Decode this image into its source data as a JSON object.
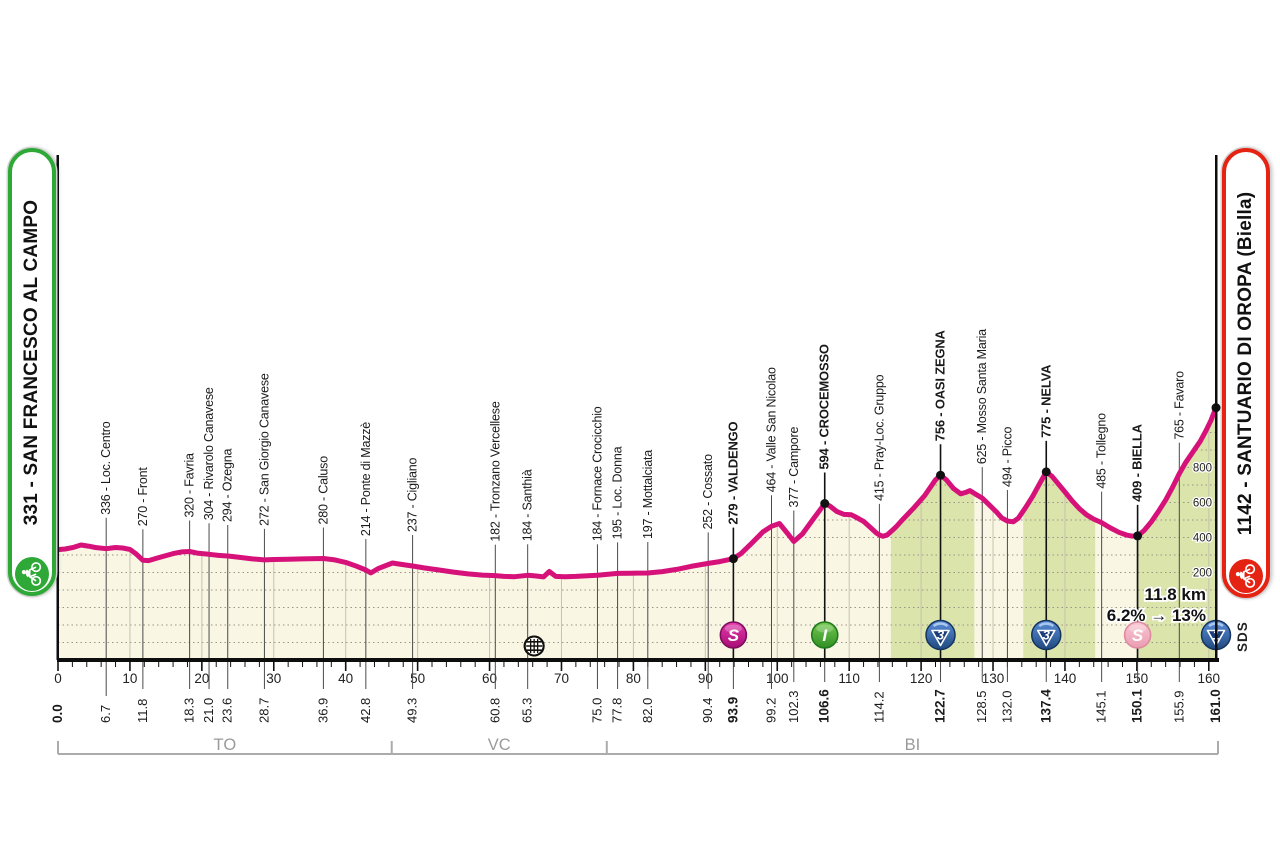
{
  "banners": {
    "start_label": "331 - SAN FRANCESCO AL CAMPO",
    "finish_label": "1142 - SANTUARIO DI OROPA (Biella)"
  },
  "signature": "SDS",
  "colors": {
    "profile_pink": "#d6117a",
    "area_cream": "#f9f6e4",
    "area_green": "#dbe4ab",
    "grid_dot": "#9a9489",
    "grid_vert": "#c6c3ae",
    "axis_black": "#0d0d0d",
    "bracket_grey": "#ababab",
    "bracket_text": "#9a9a9a",
    "banner_green": "#2ea836",
    "banner_red": "#e42313",
    "sprint_magenta": "#c5188c",
    "sprint_pink": "#f3b3c3",
    "intergiro_green": "#46a72e",
    "kom_blue": "#2e64ae",
    "kom_navy": "#1b3e7a"
  },
  "chart_data": {
    "type": "area",
    "title": "Stage elevation profile",
    "x_axis": {
      "unit": "km",
      "min": 0,
      "max": 161,
      "major_ticks": [
        0,
        10,
        20,
        30,
        40,
        50,
        60,
        70,
        80,
        90,
        100,
        110,
        120,
        130,
        140,
        150,
        160
      ],
      "minor_tick_step": 2
    },
    "y_axis": {
      "unit": "m",
      "gridline_step_m": 100,
      "labels": [
        200,
        400,
        600,
        800
      ]
    },
    "start": {
      "km": 0.0,
      "elevation": 331,
      "name": "SAN FRANCESCO AL CAMPO"
    },
    "finish": {
      "km": 161.0,
      "elevation": 1142,
      "name": "SANTUARIO DI OROPA (Biella)",
      "icon": "kom1"
    },
    "waypoints": [
      {
        "km": 6.7,
        "elevation": 336,
        "label": "336 - Loc. Centro",
        "bold": false,
        "icon": null
      },
      {
        "km": 11.8,
        "elevation": 270,
        "label": "270 - Front",
        "bold": false,
        "icon": null
      },
      {
        "km": 18.3,
        "elevation": 320,
        "label": "320 - Favria",
        "bold": false,
        "icon": null
      },
      {
        "km": 21.0,
        "elevation": 304,
        "label": "304 - Rivarolo Canavese",
        "bold": false,
        "icon": null
      },
      {
        "km": 23.6,
        "elevation": 294,
        "label": "294 - Ozegna",
        "bold": false,
        "icon": null
      },
      {
        "km": 28.7,
        "elevation": 272,
        "label": "272 - San Giorgio Canavese",
        "bold": false,
        "icon": null
      },
      {
        "km": 36.9,
        "elevation": 280,
        "label": "280 - Caluso",
        "bold": false,
        "icon": null
      },
      {
        "km": 42.8,
        "elevation": 214,
        "label": "214 - Ponte di Mazzè",
        "bold": false,
        "icon": null
      },
      {
        "km": 49.3,
        "elevation": 237,
        "label": "237 - Cigliano",
        "bold": false,
        "icon": null
      },
      {
        "km": 60.8,
        "elevation": 182,
        "label": "182 - Tronzano Vercellese",
        "bold": false,
        "icon": null
      },
      {
        "km": 65.3,
        "elevation": 184,
        "label": "184 - Santhià",
        "bold": false,
        "icon": null
      },
      {
        "km": 75.0,
        "elevation": 184,
        "label": "184 - Fornace Crocicchio",
        "bold": false,
        "icon": null
      },
      {
        "km": 77.8,
        "elevation": 195,
        "label": "195 - Loc. Donna",
        "bold": false,
        "icon": null
      },
      {
        "km": 82.0,
        "elevation": 197,
        "label": "197 - Mottalciata",
        "bold": false,
        "icon": null
      },
      {
        "km": 90.4,
        "elevation": 252,
        "label": "252 - Cossato",
        "bold": false,
        "icon": null
      },
      {
        "km": 93.9,
        "elevation": 279,
        "label": "279 - VALDENGO",
        "bold": true,
        "icon": "sprint"
      },
      {
        "km": 99.2,
        "elevation": 464,
        "label": "464 - Valle San Nicolao",
        "bold": false,
        "icon": null
      },
      {
        "km": 102.3,
        "elevation": 377,
        "label": "377 - Campore",
        "bold": false,
        "icon": null
      },
      {
        "km": 106.6,
        "elevation": 594,
        "label": "594 - CROCEMOSSO",
        "bold": true,
        "icon": "intergiro"
      },
      {
        "km": 114.2,
        "elevation": 415,
        "label": "415 - Pray-Loc. Gruppo",
        "bold": false,
        "icon": null
      },
      {
        "km": 122.7,
        "elevation": 756,
        "label": "756 - OASI ZEGNA",
        "bold": true,
        "icon": "kom3"
      },
      {
        "km": 128.5,
        "elevation": 625,
        "label": "625 - Mosso Santa Maria",
        "bold": false,
        "icon": null
      },
      {
        "km": 132.0,
        "elevation": 494,
        "label": "494 - Picco",
        "bold": false,
        "icon": null
      },
      {
        "km": 137.4,
        "elevation": 775,
        "label": "775 - NELVA",
        "bold": true,
        "icon": "kom3"
      },
      {
        "km": 145.1,
        "elevation": 485,
        "label": "485 - Tollegno",
        "bold": false,
        "icon": null
      },
      {
        "km": 150.1,
        "elevation": 409,
        "label": "409 - BIELLA",
        "bold": true,
        "icon": "sprint_pink"
      },
      {
        "km": 155.9,
        "elevation": 765,
        "label": "765 - Favaro",
        "bold": false,
        "icon": null
      }
    ],
    "km_labels_bold": [
      0.0,
      93.9,
      106.6,
      122.7,
      137.4,
      150.1,
      161.0
    ],
    "profile": [
      [
        0,
        331
      ],
      [
        1,
        334
      ],
      [
        2.2,
        344
      ],
      [
        3.2,
        357
      ],
      [
        4.2,
        351
      ],
      [
        5.2,
        343
      ],
      [
        6.7,
        336
      ],
      [
        8,
        343
      ],
      [
        9,
        340
      ],
      [
        10,
        332
      ],
      [
        10.8,
        308
      ],
      [
        11.8,
        270
      ],
      [
        12.6,
        268
      ],
      [
        14,
        285
      ],
      [
        16,
        308
      ],
      [
        17.2,
        318
      ],
      [
        18.3,
        320
      ],
      [
        19.5,
        310
      ],
      [
        21,
        304
      ],
      [
        22.3,
        298
      ],
      [
        23.6,
        294
      ],
      [
        25,
        288
      ],
      [
        27,
        278
      ],
      [
        28.7,
        272
      ],
      [
        30,
        274
      ],
      [
        32,
        276
      ],
      [
        34,
        278
      ],
      [
        36.9,
        280
      ],
      [
        38.5,
        272
      ],
      [
        40,
        258
      ],
      [
        41.5,
        236
      ],
      [
        42.8,
        214
      ],
      [
        43.5,
        198
      ],
      [
        44.5,
        222
      ],
      [
        46.5,
        254
      ],
      [
        47.5,
        248
      ],
      [
        49.3,
        237
      ],
      [
        51,
        226
      ],
      [
        53,
        214
      ],
      [
        55,
        202
      ],
      [
        57,
        192
      ],
      [
        59,
        185
      ],
      [
        60.8,
        182
      ],
      [
        62,
        178
      ],
      [
        63.5,
        176
      ],
      [
        65.3,
        184
      ],
      [
        66.5,
        180
      ],
      [
        67.5,
        175
      ],
      [
        68.3,
        206
      ],
      [
        69.2,
        178
      ],
      [
        70.5,
        176
      ],
      [
        72,
        178
      ],
      [
        75,
        184
      ],
      [
        76.5,
        190
      ],
      [
        77.8,
        195
      ],
      [
        79.5,
        196
      ],
      [
        82,
        197
      ],
      [
        84,
        205
      ],
      [
        86,
        218
      ],
      [
        88,
        235
      ],
      [
        90.4,
        252
      ],
      [
        92,
        262
      ],
      [
        93.9,
        279
      ],
      [
        95,
        310
      ],
      [
        96.5,
        370
      ],
      [
        98,
        432
      ],
      [
        99.2,
        464
      ],
      [
        100.3,
        480
      ],
      [
        101.5,
        420
      ],
      [
        102.3,
        377
      ],
      [
        103.5,
        420
      ],
      [
        105,
        505
      ],
      [
        106.6,
        594
      ],
      [
        107.3,
        580
      ],
      [
        108.3,
        548
      ],
      [
        109.3,
        532
      ],
      [
        110.3,
        530
      ],
      [
        111,
        515
      ],
      [
        112,
        492
      ],
      [
        113,
        455
      ],
      [
        113.8,
        425
      ],
      [
        114.2,
        415
      ],
      [
        114.7,
        407
      ],
      [
        115.3,
        415
      ],
      [
        116.5,
        460
      ],
      [
        117.5,
        505
      ],
      [
        119,
        570
      ],
      [
        120.5,
        640
      ],
      [
        122,
        730
      ],
      [
        122.7,
        756
      ],
      [
        123.5,
        730
      ],
      [
        124.5,
        680
      ],
      [
        125.5,
        650
      ],
      [
        126.2,
        658
      ],
      [
        126.8,
        668
      ],
      [
        127.5,
        650
      ],
      [
        128.5,
        625
      ],
      [
        129.5,
        585
      ],
      [
        130.5,
        545
      ],
      [
        131.2,
        512
      ],
      [
        132,
        494
      ],
      [
        132.8,
        490
      ],
      [
        133.5,
        510
      ],
      [
        134.5,
        570
      ],
      [
        135.5,
        635
      ],
      [
        136.5,
        710
      ],
      [
        137.4,
        775
      ],
      [
        138.2,
        750
      ],
      [
        139,
        710
      ],
      [
        140,
        660
      ],
      [
        141,
        610
      ],
      [
        142,
        565
      ],
      [
        143,
        530
      ],
      [
        144,
        505
      ],
      [
        145.1,
        485
      ],
      [
        146.3,
        455
      ],
      [
        147.5,
        430
      ],
      [
        148.5,
        415
      ],
      [
        149.3,
        408
      ],
      [
        150.1,
        409
      ],
      [
        151,
        440
      ],
      [
        152,
        490
      ],
      [
        153,
        550
      ],
      [
        154,
        615
      ],
      [
        155,
        690
      ],
      [
        155.9,
        765
      ],
      [
        156.8,
        830
      ],
      [
        157.8,
        890
      ],
      [
        158.8,
        950
      ],
      [
        159.6,
        1010
      ],
      [
        160.3,
        1070
      ],
      [
        161,
        1142
      ]
    ],
    "green_sections_km": [
      [
        115.8,
        127.4
      ],
      [
        134.2,
        144.2
      ],
      [
        150.25,
        161
      ]
    ],
    "feed_zone_km": 66.2,
    "final_climb_note": {
      "line1": "11.8 km",
      "grad_from": "6.2%",
      "arrow": "→",
      "grad_to": "13%"
    },
    "provinces": [
      {
        "label": "TO",
        "from_km": 0,
        "to_km": 46.4
      },
      {
        "label": "VC",
        "from_km": 46.4,
        "to_km": 76.3
      },
      {
        "label": "BI",
        "from_km": 76.3,
        "to_km": 161.3
      }
    ]
  }
}
